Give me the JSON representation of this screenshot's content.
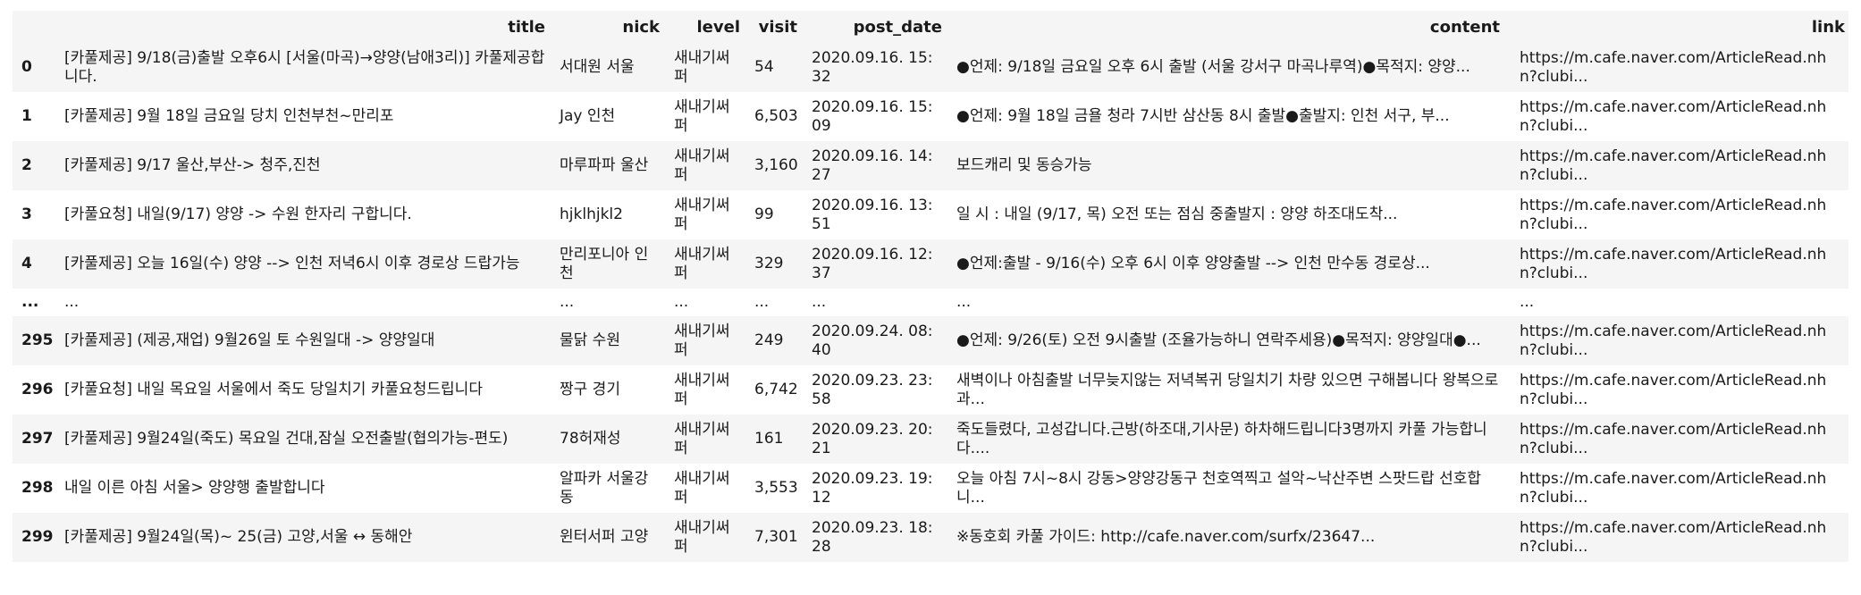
{
  "columns": {
    "index": "",
    "title": "title",
    "nick": "nick",
    "level": "level",
    "visit": "visit",
    "post_date": "post_date",
    "content": "content",
    "link": "link"
  },
  "rows": [
    {
      "index": "0",
      "title": "[카풀제공] 9/18(금)출발 오후6시 [서울(마곡)→양양(남애3리)] 카풀제공합니다.",
      "nick": "서대원 서울",
      "level": "새내기써퍼",
      "visit": "54",
      "post_date": "2020.09.16. 15:32",
      "content": "●언제: 9/18일 금요일 오후 6시 출발 (서울 강서구 마곡나루역)●목적지: 양양...",
      "link": "https://m.cafe.naver.com/ArticleRead.nhn?clubi..."
    },
    {
      "index": "1",
      "title": "[카풀제공] 9월 18일 금요일 당치 인천부천~만리포",
      "nick": "Jay 인천",
      "level": "새내기써퍼",
      "visit": "6,503",
      "post_date": "2020.09.16. 15:09",
      "content": "●언제: 9월 18일 금욜 청라 7시반 삼산동 8시 출발●출발지: 인천 서구, 부...",
      "link": "https://m.cafe.naver.com/ArticleRead.nhn?clubi..."
    },
    {
      "index": "2",
      "title": "[카풀제공] 9/17 울산,부산-> 청주,진천",
      "nick": "마루파파 울산",
      "level": "새내기써퍼",
      "visit": "3,160",
      "post_date": "2020.09.16. 14:27",
      "content": "보드캐리 및 동승가능",
      "link": "https://m.cafe.naver.com/ArticleRead.nhn?clubi..."
    },
    {
      "index": "3",
      "title": "[카풀요청] 내일(9/17) 양양 -> 수원 한자리 구합니다.",
      "nick": "hjklhjkl2",
      "level": "새내기써퍼",
      "visit": "99",
      "post_date": "2020.09.16. 13:51",
      "content": "일 시 : 내일 (9/17, 목) 오전 또는 점심 중출발지 : 양양 하조대도착...",
      "link": "https://m.cafe.naver.com/ArticleRead.nhn?clubi..."
    },
    {
      "index": "4",
      "title": "[카풀제공] 오늘 16일(수) 양양 --> 인천 저녁6시 이후 경로상 드랍가능",
      "nick": "만리포니아 인천",
      "level": "새내기써퍼",
      "visit": "329",
      "post_date": "2020.09.16. 12:37",
      "content": "●언제:출발 - 9/16(수) 오후 6시 이후 양양출발 --> 인천 만수동 경로상...",
      "link": "https://m.cafe.naver.com/ArticleRead.nhn?clubi..."
    },
    {
      "index": "...",
      "title": "...",
      "nick": "...",
      "level": "...",
      "visit": "...",
      "post_date": "...",
      "content": "...",
      "link": "..."
    },
    {
      "index": "295",
      "title": "[카풀제공] (제공,재업) 9월26일 토 수원일대 -> 양양일대",
      "nick": "물닭 수원",
      "level": "새내기써퍼",
      "visit": "249",
      "post_date": "2020.09.24. 08:40",
      "content": "●언제: 9/26(토) 오전 9시출발 (조율가능하니 연락주세용)●목적지: 양양일대●...",
      "link": "https://m.cafe.naver.com/ArticleRead.nhn?clubi..."
    },
    {
      "index": "296",
      "title": "[카풀요청] 내일 목요일 서울에서 죽도 당일치기 카풀요청드립니다",
      "nick": "짱구 경기",
      "level": "새내기써퍼",
      "visit": "6,742",
      "post_date": "2020.09.23. 23:58",
      "content": "새벽이나 아침출발 너무늦지않는 저녁복귀 당일치기 차량 있으면 구해봅니다 왕복으로과...",
      "link": "https://m.cafe.naver.com/ArticleRead.nhn?clubi..."
    },
    {
      "index": "297",
      "title": "[카풀제공] 9월24일(죽도) 목요일 건대,잠실 오전출발(협의가능-편도)",
      "nick": "78허재성",
      "level": "새내기써퍼",
      "visit": "161",
      "post_date": "2020.09.23. 20:21",
      "content": "죽도들렸다, 고성갑니다.근방(하조대,기사문) 하차해드립니다3명까지 카풀 가능합니다....",
      "link": "https://m.cafe.naver.com/ArticleRead.nhn?clubi..."
    },
    {
      "index": "298",
      "title": "내일 이른 아침 서울> 양양행 출발합니다",
      "nick": "알파카 서울강동",
      "level": "새내기써퍼",
      "visit": "3,553",
      "post_date": "2020.09.23. 19:12",
      "content": "오늘 아침 7시~8시 강동>양양강동구 천호역찍고 설악~낙산주변 스팟드랍 선호합니...",
      "link": "https://m.cafe.naver.com/ArticleRead.nhn?clubi..."
    },
    {
      "index": "299",
      "title": "[카풀제공] 9월24일(목)~ 25(금) 고양,서울 ↔ 동해안",
      "nick": "윈터서퍼 고양",
      "level": "새내기써퍼",
      "visit": "7,301",
      "post_date": "2020.09.23. 18:28",
      "content": "※동호회 카풀 가이드: http://cafe.naver.com/surfx/23647...",
      "link": "https://m.cafe.naver.com/ArticleRead.nhn?clubi..."
    }
  ]
}
